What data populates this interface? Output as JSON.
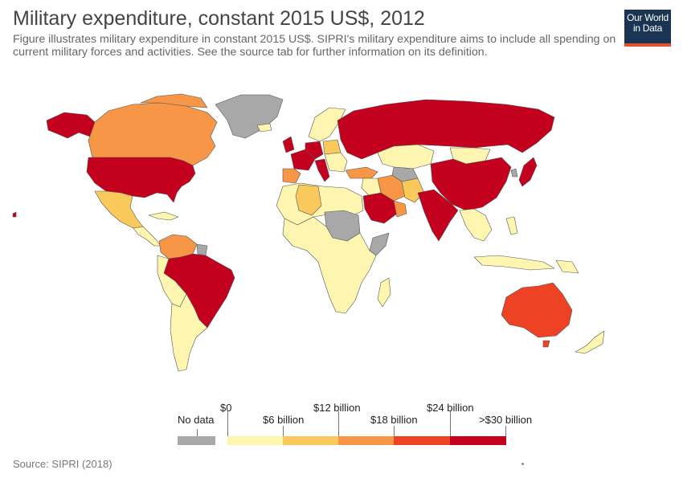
{
  "header": {
    "title": "Military expenditure, constant 2015 US$, 2012",
    "subtitle": "Figure illustrates military expenditure in constant 2015 US$. SIPRI's military expenditure aims to include all spending on current military forces and activities. See the source tab for further information on its definition.",
    "logo_line1": "Our World",
    "logo_line2": "in Data"
  },
  "legend": {
    "no_data_label": "No data",
    "no_data_color": "#a8a8a8",
    "bins": [
      {
        "label_top": "$0",
        "label_bottom": "$6 billion",
        "color": "#fdf5b0"
      },
      {
        "label_top": "",
        "label_bottom": "",
        "color": "#fac95c"
      },
      {
        "label_top": "$12 billion",
        "label_bottom": "$18 billion",
        "color": "#f79646"
      },
      {
        "label_top": "",
        "label_bottom": "",
        "color": "#ee4224"
      },
      {
        "label_top": "$24 billion",
        "label_bottom": ">$30 billion",
        "color": "#c4001f"
      }
    ],
    "labels": {
      "l0": "$0",
      "l6": "$6 billion",
      "l12": "$12 billion",
      "l18": "$18 billion",
      "l24": "$24 billion",
      "l30": ">$30 billion"
    }
  },
  "colors": {
    "no_data": "#a8a8a8",
    "bin_0_6": "#fdf5b0",
    "bin_6_12": "#fac95c",
    "bin_12_18": "#f79646",
    "bin_18_24": "#ee4224",
    "bin_24_30": "#c4001f",
    "border": "#555555"
  },
  "footer": {
    "source": "Source: SIPRI (2018)"
  }
}
